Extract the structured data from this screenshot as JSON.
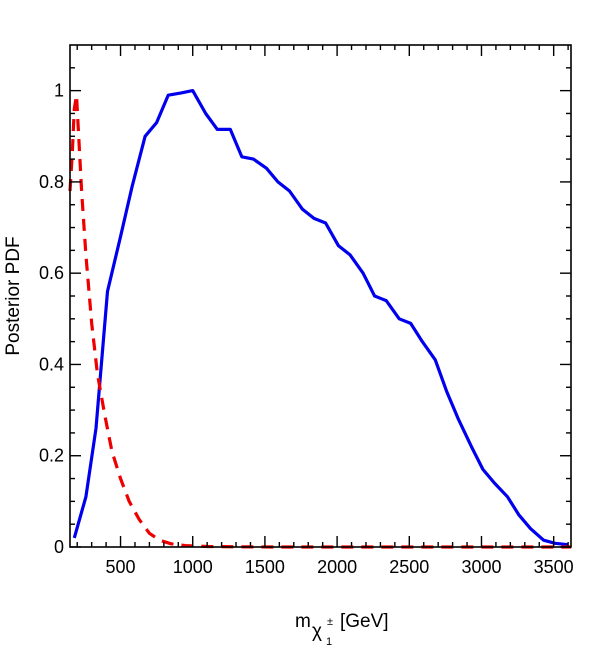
{
  "chart_data": {
    "type": "line",
    "xlabel_main": "m",
    "xlabel_symbol": "χ",
    "xlabel_sup": "±",
    "xlabel_sub": "1",
    "xlabel_unit": "[GeV]",
    "ylabel": "Posterior PDF",
    "xlim": [
      150,
      3620
    ],
    "ylim": [
      0,
      1.1
    ],
    "xticks": [
      500,
      1000,
      1500,
      2000,
      2500,
      3000,
      3500
    ],
    "yticks": [
      0,
      0.2,
      0.4,
      0.6,
      0.8,
      1
    ],
    "ytick_labels": [
      "0",
      "0.2",
      "0.4",
      "0.6",
      "0.8",
      "1"
    ],
    "grid": false,
    "series": [
      {
        "color": "#0000ee",
        "style": "solid",
        "points": [
          [
            180,
            0.02
          ],
          [
            260,
            0.11
          ],
          [
            330,
            0.26
          ],
          [
            410,
            0.56
          ],
          [
            500,
            0.68
          ],
          [
            580,
            0.79
          ],
          [
            670,
            0.9
          ],
          [
            750,
            0.93
          ],
          [
            830,
            0.99
          ],
          [
            920,
            0.995
          ],
          [
            1000,
            1.0
          ],
          [
            1090,
            0.95
          ],
          [
            1170,
            0.915
          ],
          [
            1260,
            0.915
          ],
          [
            1340,
            0.855
          ],
          [
            1420,
            0.85
          ],
          [
            1510,
            0.83
          ],
          [
            1590,
            0.8
          ],
          [
            1670,
            0.78
          ],
          [
            1760,
            0.74
          ],
          [
            1840,
            0.72
          ],
          [
            1920,
            0.71
          ],
          [
            2010,
            0.66
          ],
          [
            2090,
            0.64
          ],
          [
            2180,
            0.6
          ],
          [
            2260,
            0.55
          ],
          [
            2340,
            0.54
          ],
          [
            2430,
            0.5
          ],
          [
            2510,
            0.49
          ],
          [
            2590,
            0.45
          ],
          [
            2680,
            0.41
          ],
          [
            2760,
            0.34
          ],
          [
            2840,
            0.28
          ],
          [
            2930,
            0.22
          ],
          [
            3010,
            0.17
          ],
          [
            3090,
            0.14
          ],
          [
            3180,
            0.11
          ],
          [
            3260,
            0.07
          ],
          [
            3340,
            0.04
          ],
          [
            3430,
            0.015
          ],
          [
            3510,
            0.008
          ],
          [
            3600,
            0.005
          ]
        ]
      },
      {
        "color": "#ee0000",
        "style": "dashed",
        "points": [
          [
            150,
            0.78
          ],
          [
            165,
            0.86
          ],
          [
            180,
            0.96
          ],
          [
            195,
            0.99
          ],
          [
            210,
            0.9
          ],
          [
            230,
            0.78
          ],
          [
            260,
            0.64
          ],
          [
            300,
            0.49
          ],
          [
            340,
            0.38
          ],
          [
            390,
            0.29
          ],
          [
            440,
            0.21
          ],
          [
            500,
            0.15
          ],
          [
            560,
            0.1
          ],
          [
            630,
            0.06
          ],
          [
            700,
            0.03
          ],
          [
            770,
            0.015
          ],
          [
            850,
            0.007
          ],
          [
            950,
            0.003
          ],
          [
            1100,
            0.001
          ],
          [
            1300,
            0.0005
          ],
          [
            1600,
            0.0
          ],
          [
            2000,
            0.0
          ],
          [
            2500,
            0.0
          ],
          [
            3000,
            0.0
          ],
          [
            3620,
            0.0
          ]
        ]
      }
    ]
  }
}
